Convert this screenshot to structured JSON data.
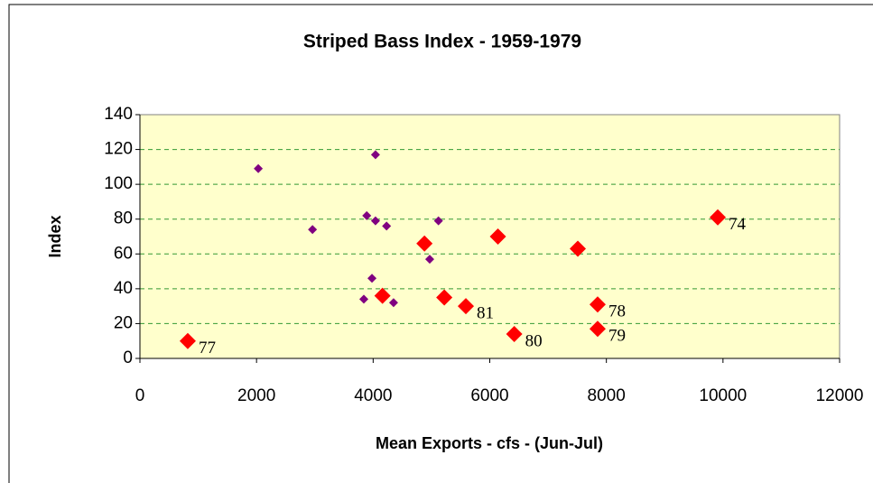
{
  "chart_data": {
    "type": "scatter",
    "title": "Striped Bass Index - 1959-1979",
    "x_label": "Mean Exports - cfs - (Jun-Jul)",
    "y_label": "Index",
    "xlim": [
      0,
      12000
    ],
    "xticks": [
      0,
      2000,
      4000,
      6000,
      8000,
      10000,
      12000
    ],
    "ylim": [
      0,
      140
    ],
    "yticks": [
      0,
      20,
      40,
      60,
      80,
      100,
      120,
      140
    ],
    "grid": true,
    "series": [
      {
        "color": "#800080",
        "marker_size": 5,
        "x": [
          2030,
          2960,
          3840,
          3890,
          3980,
          4040,
          4040,
          4230,
          4350,
          4970,
          5120
        ],
        "y": [
          109,
          74,
          34,
          82,
          46,
          79,
          117,
          76,
          32,
          57,
          79
        ]
      },
      {
        "color": "#ff0000",
        "marker_size": 9,
        "x": [
          820,
          4160,
          4880,
          5220,
          5590,
          6140,
          6420,
          7510,
          7850,
          7850,
          9910
        ],
        "y": [
          10,
          36,
          66,
          35,
          30,
          70,
          14,
          63,
          31,
          17,
          81
        ],
        "point_labels": [
          "77",
          null,
          null,
          null,
          "81",
          null,
          "80",
          null,
          "78",
          "79",
          "74"
        ]
      }
    ]
  }
}
